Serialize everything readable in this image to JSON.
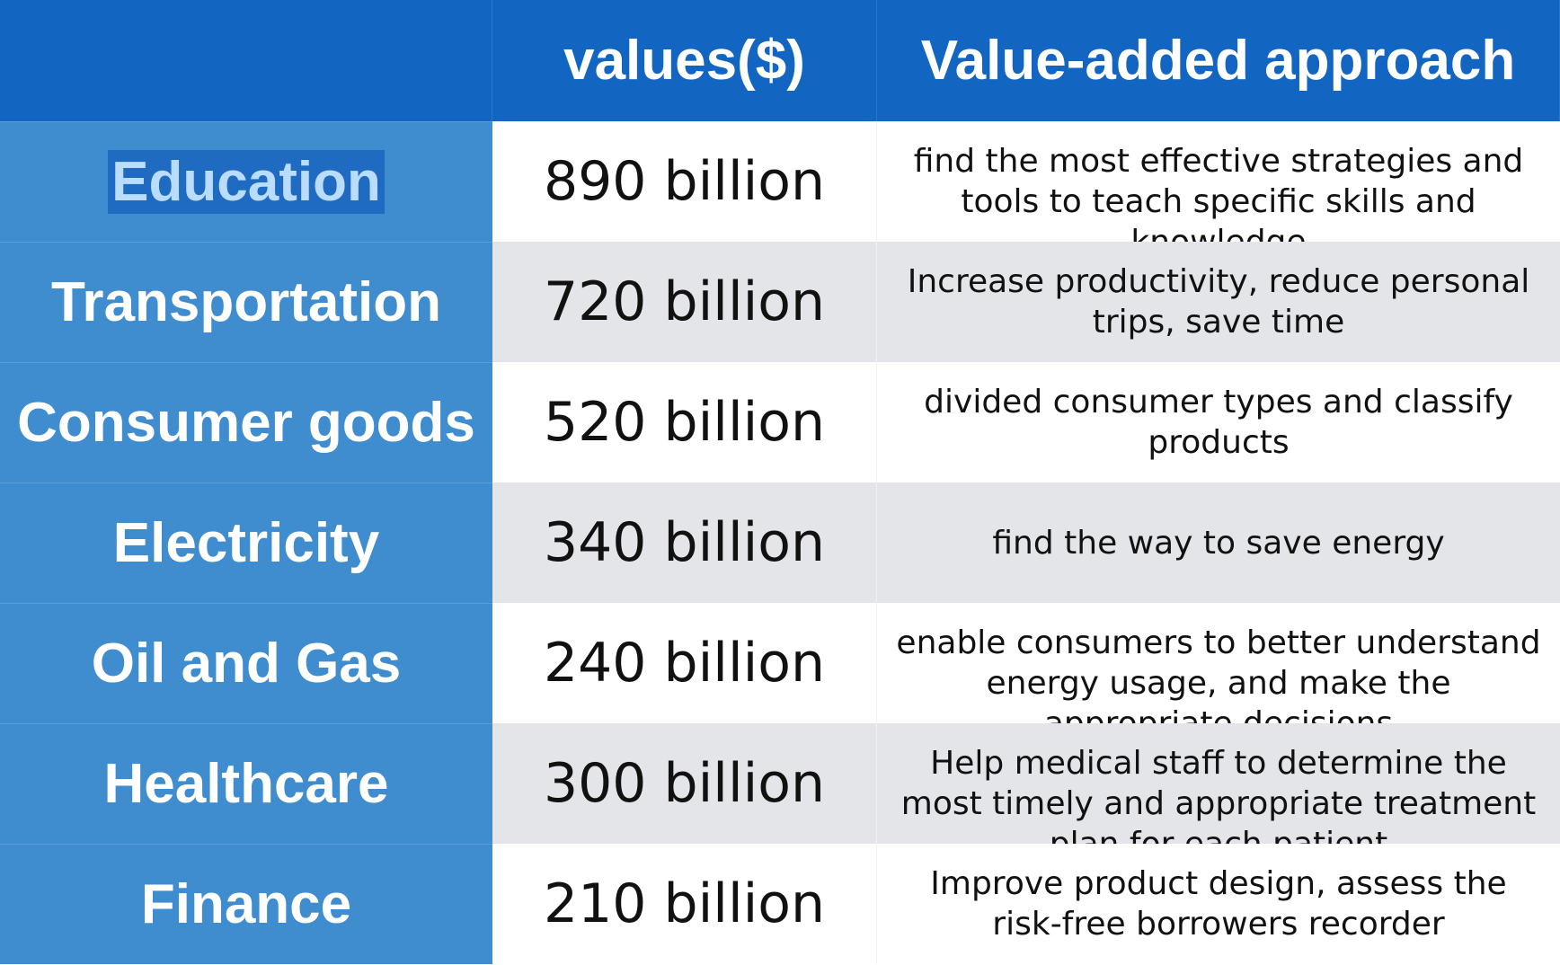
{
  "header": {
    "col0": "",
    "col1": "values($)",
    "col2": "Value-added approach"
  },
  "rows": [
    {
      "sector": "Education",
      "value": "890 billion",
      "approach": "find the most effective strategies and tools to teach specific skills and knowledge"
    },
    {
      "sector": "Transportation",
      "value": "720 billion",
      "approach": "Increase productivity, reduce personal trips, save time"
    },
    {
      "sector": "Consumer goods",
      "value": "520 billion",
      "approach": "divided consumer types and classify products"
    },
    {
      "sector": "Electricity",
      "value": "340 billion",
      "approach": "find the way to save energy"
    },
    {
      "sector": "Oil and Gas",
      "value": "240 billion",
      "approach": "enable consumers to better understand energy usage, and make the appropriate decisions"
    },
    {
      "sector": "Healthcare",
      "value": "300 billion",
      "approach": "Help medical staff to determine the most timely and appropriate treatment plan for each patient"
    },
    {
      "sector": "Finance",
      "value": "210 billion",
      "approach": "Improve product design, assess the risk-free borrowers recorder"
    }
  ],
  "colors": {
    "header_bg": "#1265c0",
    "label_bg": "#3f8ccf",
    "row_gray": "#e4e5e9",
    "selection_bg": "#1f6bc2"
  }
}
